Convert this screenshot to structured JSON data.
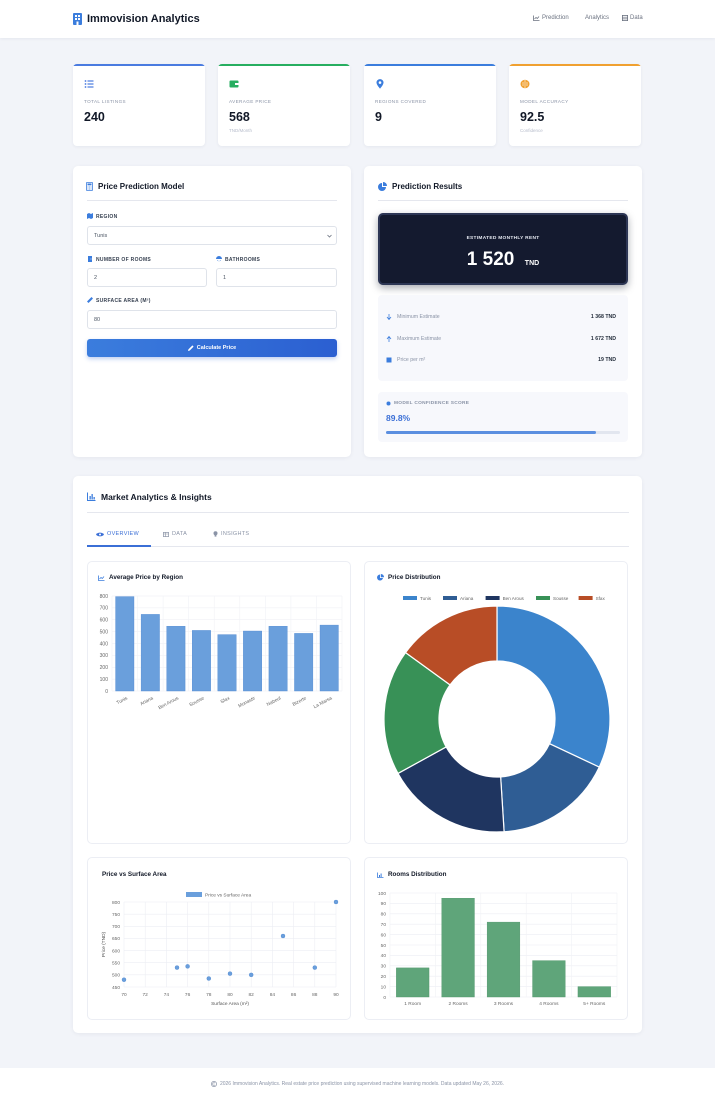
{
  "header": {
    "brand": "Immovision Analytics",
    "nav": [
      {
        "label": "Prediction",
        "icon": "chart-line-icon"
      },
      {
        "label": "Analytics",
        "icon": ""
      },
      {
        "label": "Data",
        "icon": "table-icon"
      }
    ]
  },
  "stats": [
    {
      "label": "TOTAL LISTINGS",
      "value": "240",
      "sub": "",
      "color": "#4a7be0",
      "icon": "list-icon"
    },
    {
      "label": "AVERAGE PRICE",
      "value": "568",
      "sub": "TND/Month",
      "color": "#27ae60",
      "icon": "wallet-icon"
    },
    {
      "label": "REGIONS COVERED",
      "value": "9",
      "sub": "",
      "color": "#3b7ddd",
      "icon": "map-pin-icon"
    },
    {
      "label": "MODEL ACCURACY",
      "value": "92.5",
      "sub": "Confidence",
      "color": "#f0a030",
      "icon": "brain-icon"
    }
  ],
  "form": {
    "title": "Price Prediction Model",
    "region_label": "REGION",
    "region_value": "Tunis",
    "rooms_label": "NUMBER OF ROOMS",
    "rooms_value": "2",
    "baths_label": "BATHROOMS",
    "baths_value": "1",
    "area_label": "SURFACE AREA (M²)",
    "area_value": "80",
    "button": "Calculate Price"
  },
  "results": {
    "title": "Prediction Results",
    "rent_label": "ESTIMATED MONTHLY RENT",
    "rent_value": "1 520",
    "rent_unit": "TND",
    "rows": [
      {
        "label": "Minimum Estimate",
        "value": "1 368 TND",
        "icon": "arrow-down-icon"
      },
      {
        "label": "Maximum Estimate",
        "value": "1 672 TND",
        "icon": "arrow-up-icon"
      },
      {
        "label": "Price per m²",
        "value": "19 TND",
        "icon": "square-icon"
      }
    ],
    "confidence_label": "MODEL CONFIDENCE SCORE",
    "confidence_value": "89.8%",
    "confidence_fraction": 0.898
  },
  "analytics": {
    "title": "Market Analytics & Insights",
    "tabs": [
      "OVERVIEW",
      "DATA",
      "INSIGHTS"
    ],
    "active_tab": "OVERVIEW"
  },
  "chart_data": [
    {
      "type": "bar",
      "title": "Average Price by Region",
      "categories": [
        "Tunis",
        "Ariana",
        "Ben Arous",
        "Sousse",
        "Sfax",
        "Monastir",
        "Nabeul",
        "Bizerte",
        "La Marsa"
      ],
      "values": [
        795,
        645,
        545,
        510,
        475,
        505,
        545,
        485,
        555
      ],
      "ylim": [
        0,
        800
      ],
      "yticks": [
        "0",
        "100",
        "200",
        "300",
        "400",
        "500",
        "600",
        "700",
        "800"
      ],
      "color": "#6a9fdc"
    },
    {
      "type": "pie",
      "title": "Price Distribution",
      "labels": [
        "Tunis",
        "Ariana",
        "Ben Arous",
        "Sousse",
        "Sfax"
      ],
      "values": [
        32,
        17,
        18,
        18,
        15
      ],
      "colors": [
        "#3b84cc",
        "#2f5d94",
        "#1f3560",
        "#389157",
        "#b84d26"
      ]
    },
    {
      "type": "scatter",
      "title": "Price vs Surface Area",
      "series": [
        {
          "name": "Price vs Surface Area",
          "points": [
            [
              70,
              480
            ],
            [
              75,
              530
            ],
            [
              76,
              535
            ],
            [
              78,
              485
            ],
            [
              80,
              505
            ],
            [
              82,
              500
            ],
            [
              85,
              660
            ],
            [
              88,
              530
            ],
            [
              90,
              800
            ]
          ]
        }
      ],
      "xlabel": "Surface Area (m²)",
      "ylabel": "Price (TND)",
      "xlim": [
        70,
        90
      ],
      "ylim": [
        450,
        800
      ],
      "xticks": [
        "70",
        "72",
        "74",
        "76",
        "78",
        "80",
        "82",
        "84",
        "86",
        "88",
        "90"
      ],
      "yticks": [
        "450",
        "500",
        "550",
        "600",
        "650",
        "700",
        "750",
        "800"
      ],
      "color": "#6a9fdc"
    },
    {
      "type": "bar",
      "title": "Rooms Distribution",
      "categories": [
        "1 Room",
        "2 Rooms",
        "3 Rooms",
        "4 Rooms",
        "5+ Rooms"
      ],
      "values": [
        28,
        95,
        72,
        35,
        10
      ],
      "ylim": [
        0,
        100
      ],
      "yticks": [
        "0",
        "10",
        "20",
        "30",
        "40",
        "50",
        "60",
        "70",
        "80",
        "90",
        "100"
      ],
      "color": "#5fa57a"
    }
  ],
  "footer": "2026 Immovision Analytics. Real estate price prediction using supervised machine learning models. Data updated May 26, 2026."
}
